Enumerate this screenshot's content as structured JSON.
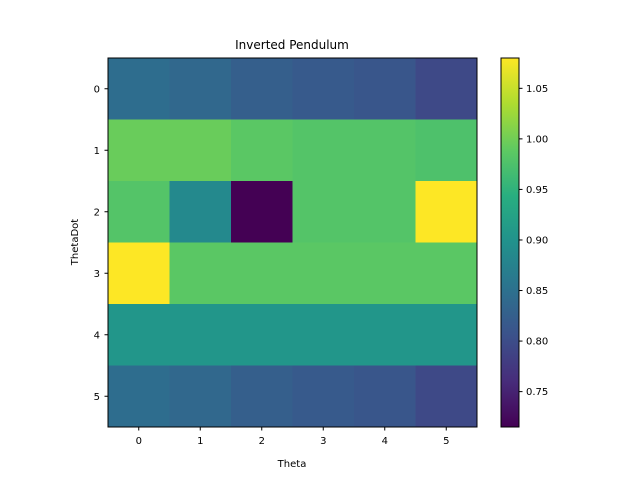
{
  "chart_data": {
    "type": "heatmap",
    "title": "Inverted Pendulum",
    "xlabel": "Theta",
    "ylabel": "ThetaDot",
    "x_categories": [
      "0",
      "1",
      "2",
      "3",
      "4",
      "5"
    ],
    "y_categories": [
      "0",
      "1",
      "2",
      "3",
      "4",
      "5"
    ],
    "values": [
      [
        0.845,
        0.838,
        0.825,
        0.818,
        0.812,
        0.795
      ],
      [
        0.995,
        0.995,
        0.985,
        0.98,
        0.98,
        0.975
      ],
      [
        0.98,
        0.885,
        0.715,
        0.98,
        0.98,
        1.08
      ],
      [
        1.08,
        0.985,
        0.985,
        0.985,
        0.985,
        0.985
      ],
      [
        0.905,
        0.905,
        0.905,
        0.905,
        0.905,
        0.905
      ],
      [
        0.845,
        0.838,
        0.825,
        0.818,
        0.812,
        0.795
      ]
    ],
    "vmin": 0.715,
    "vmax": 1.08,
    "colormap": "viridis",
    "colorbar": {
      "ticks": [
        0.75,
        0.8,
        0.85,
        0.9,
        0.95,
        1.0,
        1.05
      ],
      "tick_labels": [
        "0.75",
        "0.80",
        "0.85",
        "0.90",
        "0.95",
        "1.00",
        "1.05"
      ]
    },
    "grid": false
  }
}
